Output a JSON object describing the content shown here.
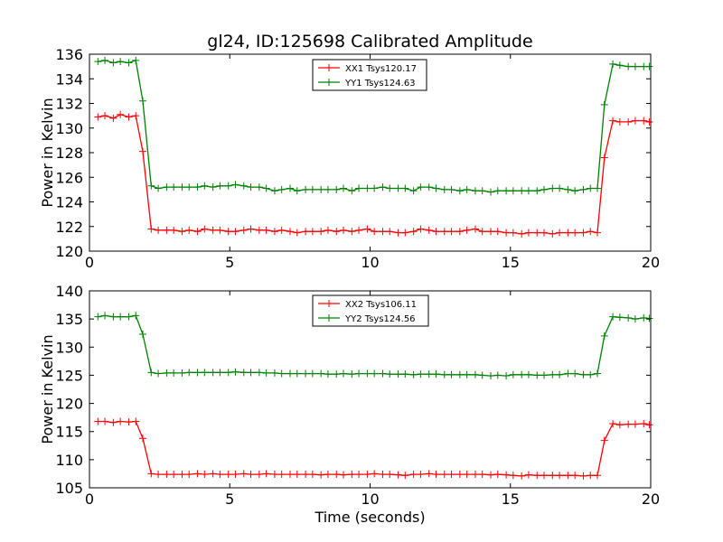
{
  "chart_data": [
    {
      "type": "line",
      "title": "gl24, ID:125698 Calibrated Amplitude",
      "xlabel": "",
      "ylabel": "Power in Kelvin",
      "xlim": [
        0,
        20
      ],
      "ylim": [
        120,
        136
      ],
      "xticks": [
        "0",
        "5",
        "10",
        "15",
        "20"
      ],
      "yticks": [
        "120",
        "122",
        "124",
        "126",
        "128",
        "130",
        "132",
        "134",
        "136"
      ],
      "legend_position": "top-center",
      "grid": false,
      "x": [
        0.3,
        0.55,
        0.85,
        1.1,
        1.4,
        1.65,
        1.9,
        2.2,
        2.45,
        2.75,
        3.0,
        3.3,
        3.55,
        3.85,
        4.1,
        4.4,
        4.65,
        4.95,
        5.2,
        5.5,
        5.75,
        6.05,
        6.3,
        6.6,
        6.85,
        7.15,
        7.4,
        7.7,
        7.95,
        8.25,
        8.5,
        8.8,
        9.05,
        9.35,
        9.6,
        9.9,
        10.15,
        10.45,
        10.7,
        11.0,
        11.25,
        11.55,
        11.8,
        12.1,
        12.35,
        12.65,
        12.9,
        13.2,
        13.45,
        13.75,
        14.0,
        14.3,
        14.55,
        14.85,
        15.1,
        15.4,
        15.65,
        15.95,
        16.2,
        16.5,
        16.75,
        17.05,
        17.3,
        17.6,
        17.85,
        18.1,
        18.35,
        18.65,
        18.9,
        19.2,
        19.45,
        19.75,
        19.95
      ],
      "series": [
        {
          "name": "XX1 Tsys120.17",
          "color": "#ff0000",
          "values": [
            130.9,
            131.0,
            130.8,
            131.1,
            130.9,
            131.0,
            128.1,
            121.8,
            121.7,
            121.7,
            121.7,
            121.6,
            121.7,
            121.6,
            121.8,
            121.7,
            121.7,
            121.6,
            121.6,
            121.7,
            121.8,
            121.7,
            121.7,
            121.6,
            121.7,
            121.6,
            121.5,
            121.6,
            121.6,
            121.6,
            121.7,
            121.6,
            121.7,
            121.6,
            121.7,
            121.8,
            121.6,
            121.6,
            121.6,
            121.5,
            121.5,
            121.6,
            121.8,
            121.7,
            121.6,
            121.6,
            121.6,
            121.6,
            121.7,
            121.8,
            121.6,
            121.6,
            121.6,
            121.5,
            121.5,
            121.4,
            121.5,
            121.5,
            121.5,
            121.4,
            121.5,
            121.5,
            121.5,
            121.5,
            121.6,
            121.5,
            127.6,
            130.6,
            130.5,
            130.5,
            130.6,
            130.6,
            130.5
          ]
        },
        {
          "name": "YY1 Tsys124.63",
          "color": "#008000",
          "values": [
            135.4,
            135.5,
            135.3,
            135.4,
            135.3,
            135.5,
            132.2,
            125.3,
            125.1,
            125.2,
            125.2,
            125.2,
            125.2,
            125.2,
            125.3,
            125.2,
            125.3,
            125.3,
            125.4,
            125.3,
            125.2,
            125.2,
            125.1,
            124.9,
            125.0,
            125.1,
            124.9,
            125.0,
            125.0,
            125.0,
            125.0,
            125.0,
            125.1,
            124.9,
            125.1,
            125.1,
            125.1,
            125.2,
            125.1,
            125.1,
            125.1,
            124.9,
            125.2,
            125.2,
            125.1,
            125.0,
            125.0,
            124.9,
            125.0,
            124.9,
            124.9,
            124.8,
            124.9,
            124.9,
            124.9,
            124.9,
            124.9,
            124.9,
            125.0,
            125.1,
            125.1,
            125.0,
            124.9,
            125.0,
            125.1,
            125.1,
            131.9,
            135.2,
            135.1,
            135.0,
            135.0,
            135.0,
            135.0
          ]
        }
      ]
    },
    {
      "type": "line",
      "title": "",
      "xlabel": "Time (seconds)",
      "ylabel": "Power in Kelvin",
      "xlim": [
        0,
        20
      ],
      "ylim": [
        105,
        140
      ],
      "xticks": [
        "0",
        "5",
        "10",
        "15",
        "20"
      ],
      "yticks": [
        "105",
        "110",
        "115",
        "120",
        "125",
        "130",
        "135",
        "140"
      ],
      "legend_position": "top-center",
      "grid": false,
      "x": [
        0.3,
        0.55,
        0.85,
        1.1,
        1.4,
        1.65,
        1.9,
        2.2,
        2.45,
        2.75,
        3.0,
        3.3,
        3.55,
        3.85,
        4.1,
        4.4,
        4.65,
        4.95,
        5.2,
        5.5,
        5.75,
        6.05,
        6.3,
        6.6,
        6.85,
        7.15,
        7.4,
        7.7,
        7.95,
        8.25,
        8.5,
        8.8,
        9.05,
        9.35,
        9.6,
        9.9,
        10.15,
        10.45,
        10.7,
        11.0,
        11.25,
        11.55,
        11.8,
        12.1,
        12.35,
        12.65,
        12.9,
        13.2,
        13.45,
        13.75,
        14.0,
        14.3,
        14.55,
        14.85,
        15.1,
        15.4,
        15.65,
        15.95,
        16.2,
        16.5,
        16.75,
        17.05,
        17.3,
        17.6,
        17.85,
        18.1,
        18.35,
        18.65,
        18.9,
        19.2,
        19.45,
        19.75,
        19.95
      ],
      "series": [
        {
          "name": "XX2 Tsys106.11",
          "color": "#ff0000",
          "values": [
            116.8,
            116.8,
            116.6,
            116.8,
            116.7,
            116.8,
            113.8,
            107.5,
            107.4,
            107.4,
            107.4,
            107.4,
            107.4,
            107.5,
            107.4,
            107.5,
            107.4,
            107.4,
            107.4,
            107.5,
            107.4,
            107.4,
            107.5,
            107.4,
            107.4,
            107.4,
            107.4,
            107.4,
            107.4,
            107.3,
            107.4,
            107.4,
            107.3,
            107.4,
            107.4,
            107.4,
            107.5,
            107.4,
            107.4,
            107.3,
            107.2,
            107.4,
            107.4,
            107.5,
            107.4,
            107.4,
            107.4,
            107.4,
            107.4,
            107.4,
            107.4,
            107.3,
            107.4,
            107.3,
            107.2,
            107.1,
            107.3,
            107.2,
            107.2,
            107.2,
            107.2,
            107.2,
            107.2,
            107.1,
            107.2,
            107.2,
            113.4,
            116.4,
            116.2,
            116.3,
            116.3,
            116.4,
            116.2
          ]
        },
        {
          "name": "YY2 Tsys124.56",
          "color": "#008000",
          "values": [
            135.4,
            135.6,
            135.4,
            135.4,
            135.4,
            135.6,
            132.3,
            125.5,
            125.3,
            125.4,
            125.4,
            125.4,
            125.5,
            125.5,
            125.5,
            125.5,
            125.5,
            125.5,
            125.6,
            125.5,
            125.5,
            125.5,
            125.4,
            125.4,
            125.3,
            125.3,
            125.3,
            125.3,
            125.3,
            125.3,
            125.2,
            125.2,
            125.3,
            125.2,
            125.3,
            125.3,
            125.3,
            125.3,
            125.2,
            125.2,
            125.2,
            125.1,
            125.2,
            125.2,
            125.2,
            125.1,
            125.1,
            125.1,
            125.1,
            125.1,
            125.0,
            124.9,
            125.0,
            124.9,
            125.1,
            125.1,
            125.1,
            125.0,
            125.0,
            125.1,
            125.1,
            125.3,
            125.3,
            125.1,
            125.1,
            125.3,
            132.0,
            135.4,
            135.3,
            135.2,
            135.0,
            135.2,
            135.1
          ]
        }
      ]
    }
  ]
}
